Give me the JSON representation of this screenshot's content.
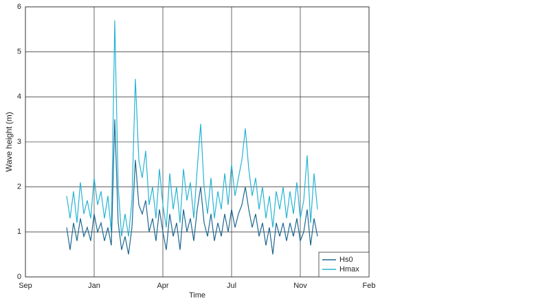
{
  "chart_data": {
    "type": "line",
    "xlabel": "Time",
    "ylabel": "Wave height (m)",
    "x": [
      0.6,
      0.65,
      0.7,
      0.75,
      0.8,
      0.85,
      0.9,
      0.95,
      1.0,
      1.05,
      1.1,
      1.15,
      1.2,
      1.25,
      1.3,
      1.35,
      1.4,
      1.45,
      1.5,
      1.55,
      1.6,
      1.65,
      1.7,
      1.75,
      1.8,
      1.85,
      1.9,
      1.95,
      2.0,
      2.05,
      2.1,
      2.15,
      2.2,
      2.25,
      2.3,
      2.35,
      2.4,
      2.45,
      2.5,
      2.55,
      2.6,
      2.65,
      2.7,
      2.75,
      2.8,
      2.85,
      2.9,
      2.95,
      3.0,
      3.05,
      3.1,
      3.15,
      3.2,
      3.25,
      3.3,
      3.35,
      3.4,
      3.45,
      3.5,
      3.55,
      3.6,
      3.65,
      3.7,
      3.75,
      3.8,
      3.85,
      3.9,
      3.95,
      4.0,
      4.05,
      4.1,
      4.15,
      4.2,
      4.25
    ],
    "series": [
      {
        "name": "Hs0",
        "color": "#1b6690",
        "values": [
          1.1,
          0.6,
          1.2,
          0.8,
          1.3,
          0.9,
          1.1,
          0.8,
          1.4,
          1.0,
          1.2,
          0.8,
          1.1,
          0.7,
          3.5,
          1.2,
          0.6,
          0.9,
          0.5,
          1.1,
          2.6,
          1.6,
          1.4,
          1.7,
          1.0,
          1.3,
          0.8,
          1.5,
          1.0,
          0.6,
          1.4,
          0.9,
          1.2,
          0.6,
          1.5,
          1.0,
          1.3,
          0.8,
          1.5,
          2.0,
          1.2,
          0.9,
          1.4,
          0.8,
          1.2,
          0.9,
          1.4,
          1.0,
          1.5,
          1.1,
          1.4,
          1.6,
          2.0,
          1.5,
          1.1,
          1.4,
          0.9,
          1.2,
          0.7,
          1.1,
          0.5,
          1.2,
          0.9,
          1.2,
          0.8,
          1.2,
          0.9,
          1.3,
          0.8,
          1.0,
          1.5,
          0.7,
          1.3,
          0.9
        ]
      },
      {
        "name": "Hmax",
        "color": "#25b3d3",
        "values": [
          1.8,
          1.3,
          1.9,
          1.2,
          2.1,
          1.4,
          1.7,
          1.3,
          2.2,
          1.6,
          1.9,
          1.3,
          1.8,
          1.0,
          5.7,
          2.0,
          0.9,
          1.4,
          0.9,
          1.7,
          4.4,
          2.6,
          2.2,
          2.8,
          1.6,
          2.0,
          1.3,
          2.4,
          1.6,
          1.1,
          2.3,
          1.5,
          2.0,
          1.2,
          2.4,
          1.7,
          2.1,
          1.3,
          2.4,
          3.4,
          2.0,
          1.4,
          2.2,
          1.3,
          1.9,
          1.5,
          2.3,
          1.6,
          2.5,
          1.8,
          2.2,
          2.6,
          3.3,
          2.4,
          1.8,
          2.2,
          1.5,
          2.0,
          1.3,
          1.8,
          1.1,
          1.9,
          1.5,
          2.0,
          1.3,
          1.9,
          1.4,
          2.1,
          1.3,
          1.7,
          2.7,
          1.2,
          2.3,
          1.5
        ]
      }
    ],
    "xlim": [
      0,
      5
    ],
    "xticks": [
      {
        "value": 0,
        "label": "Sep"
      },
      {
        "value": 1,
        "label": "Jan"
      },
      {
        "value": 2,
        "label": "Apr"
      },
      {
        "value": 3,
        "label": "Jul"
      },
      {
        "value": 4,
        "label": "Nov"
      },
      {
        "value": 5,
        "label": "Feb"
      }
    ],
    "ylim": [
      0,
      6
    ],
    "yticks": [
      0,
      1,
      2,
      3,
      4,
      5,
      6
    ],
    "grid": true,
    "legend": "southeast"
  }
}
